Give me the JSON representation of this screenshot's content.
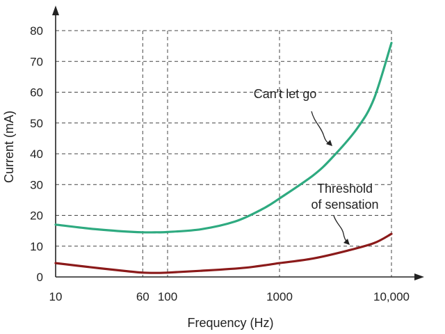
{
  "chart_data": {
    "type": "line",
    "title": "",
    "xlabel": "Frequency (Hz)",
    "ylabel": "Current (mA)",
    "x_scale": "log",
    "xlim": [
      10,
      10000
    ],
    "ylim": [
      0,
      80
    ],
    "grid": "dashed",
    "x_ticks": [
      {
        "value": 10,
        "label": "10"
      },
      {
        "value": 60,
        "label": "60"
      },
      {
        "value": 100,
        "label": "100"
      },
      {
        "value": 1000,
        "label": "1000"
      },
      {
        "value": 10000,
        "label": "10,000"
      }
    ],
    "y_ticks": [
      {
        "value": 0,
        "label": "0"
      },
      {
        "value": 10,
        "label": "10"
      },
      {
        "value": 20,
        "label": "20"
      },
      {
        "value": 30,
        "label": "30"
      },
      {
        "value": 40,
        "label": "40"
      },
      {
        "value": 50,
        "label": "50"
      },
      {
        "value": 60,
        "label": "60"
      },
      {
        "value": 70,
        "label": "70"
      },
      {
        "value": 80,
        "label": "80"
      }
    ],
    "series": [
      {
        "label_lines": [
          "Can't let go"
        ],
        "color": "#2eaa80",
        "points": [
          [
            10,
            17
          ],
          [
            20,
            15.7
          ],
          [
            40,
            14.8
          ],
          [
            60,
            14.5
          ],
          [
            80,
            14.5
          ],
          [
            100,
            14.6
          ],
          [
            200,
            15.5
          ],
          [
            400,
            18
          ],
          [
            700,
            22
          ],
          [
            1000,
            25.5
          ],
          [
            2000,
            33
          ],
          [
            3000,
            39
          ],
          [
            5000,
            48.5
          ],
          [
            7000,
            58
          ],
          [
            10000,
            76
          ]
        ]
      },
      {
        "label_lines": [
          "Threshold",
          "of sensation"
        ],
        "color": "#8b1a1a",
        "points": [
          [
            10,
            4.5
          ],
          [
            20,
            3.2
          ],
          [
            40,
            2.0
          ],
          [
            60,
            1.4
          ],
          [
            80,
            1.3
          ],
          [
            100,
            1.4
          ],
          [
            200,
            2.0
          ],
          [
            500,
            3.0
          ],
          [
            1000,
            4.5
          ],
          [
            2000,
            6.0
          ],
          [
            4000,
            8.5
          ],
          [
            7000,
            11
          ],
          [
            10000,
            14
          ]
        ]
      }
    ]
  }
}
